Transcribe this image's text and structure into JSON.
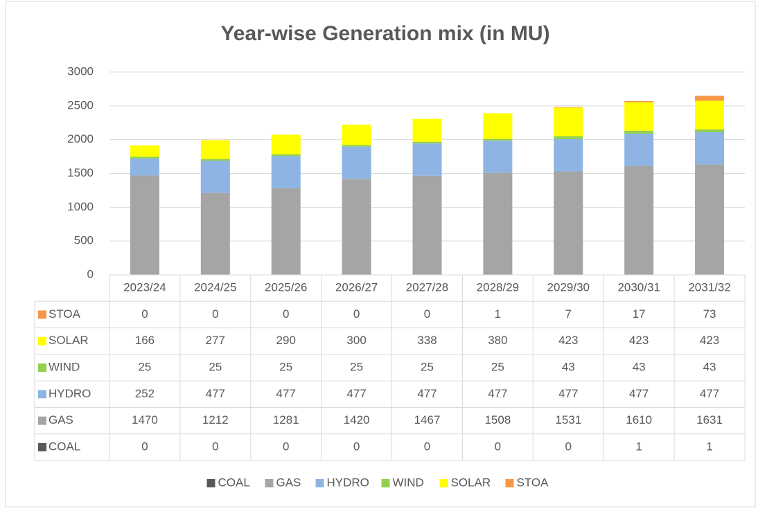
{
  "chart_data": {
    "type": "bar",
    "stacked": true,
    "title": "Year-wise Generation mix (in MU)",
    "categories": [
      "2023/24",
      "2024/25",
      "2025/26",
      "2026/27",
      "2027/28",
      "2028/29",
      "2029/30",
      "2030/31",
      "2031/32"
    ],
    "series": [
      {
        "name": "COAL",
        "color": "#595959",
        "values": [
          0,
          0,
          0,
          0,
          0,
          0,
          0,
          1,
          1
        ]
      },
      {
        "name": "GAS",
        "color": "#a5a5a5",
        "values": [
          1470,
          1212,
          1281,
          1420,
          1467,
          1508,
          1531,
          1610,
          1631
        ]
      },
      {
        "name": "HYDRO",
        "color": "#8eb4e3",
        "values": [
          252,
          477,
          477,
          477,
          477,
          477,
          477,
          477,
          477
        ]
      },
      {
        "name": "WIND",
        "color": "#92d050",
        "values": [
          25,
          25,
          25,
          25,
          25,
          25,
          43,
          43,
          43
        ]
      },
      {
        "name": "SOLAR",
        "color": "#ffff00",
        "values": [
          166,
          277,
          290,
          300,
          338,
          380,
          423,
          423,
          423
        ]
      },
      {
        "name": "STOA",
        "color": "#f79646",
        "values": [
          0,
          0,
          0,
          0,
          0,
          1,
          7,
          17,
          73
        ]
      }
    ],
    "ylim": [
      0,
      3000
    ],
    "yticks": [
      0,
      500,
      1000,
      1500,
      2000,
      2500,
      3000
    ],
    "grid": true,
    "legend": "bottom",
    "data_table": true
  }
}
